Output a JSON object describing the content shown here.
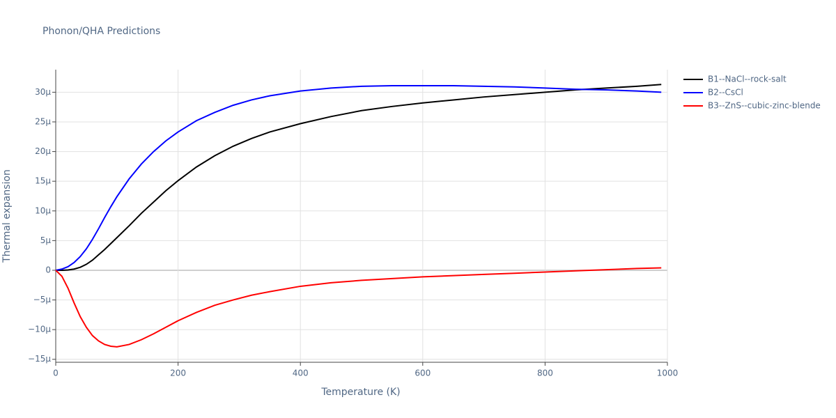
{
  "chart_data": {
    "type": "line",
    "title": "Phonon/QHA Predictions",
    "x_label": "Temperature (K)",
    "y_label": "Thermal expansion",
    "x": [
      0,
      10,
      20,
      30,
      40,
      50,
      60,
      70,
      80,
      90,
      100,
      120,
      140,
      160,
      180,
      200,
      230,
      260,
      290,
      320,
      350,
      400,
      450,
      500,
      550,
      600,
      650,
      700,
      750,
      800,
      850,
      900,
      950,
      990
    ],
    "series": [
      {
        "name": "B1--NaCl--rock-salt",
        "color": "#000000",
        "values": [
          0,
          0,
          0.05,
          0.2,
          0.5,
          1.0,
          1.7,
          2.6,
          3.5,
          4.5,
          5.5,
          7.5,
          9.6,
          11.5,
          13.4,
          15.1,
          17.4,
          19.3,
          20.9,
          22.2,
          23.3,
          24.7,
          25.9,
          26.9,
          27.6,
          28.2,
          28.7,
          29.2,
          29.6,
          30.0,
          30.4,
          30.7,
          31.0,
          31.3
        ]
      },
      {
        "name": "B2--CsCl",
        "color": "#0000ff",
        "values": [
          0,
          0.2,
          0.6,
          1.3,
          2.3,
          3.6,
          5.2,
          7.0,
          8.9,
          10.7,
          12.4,
          15.4,
          17.9,
          20.0,
          21.8,
          23.3,
          25.2,
          26.6,
          27.8,
          28.7,
          29.4,
          30.2,
          30.7,
          31.0,
          31.1,
          31.1,
          31.1,
          31.0,
          30.9,
          30.7,
          30.5,
          30.4,
          30.2,
          30.0
        ]
      },
      {
        "name": "B3--ZnS--cubic-zinc-blende",
        "color": "#ff0000",
        "values": [
          0,
          -1.0,
          -3.0,
          -5.5,
          -7.8,
          -9.6,
          -11.0,
          -11.9,
          -12.5,
          -12.8,
          -12.9,
          -12.5,
          -11.7,
          -10.7,
          -9.6,
          -8.5,
          -7.1,
          -5.9,
          -5.0,
          -4.2,
          -3.6,
          -2.7,
          -2.1,
          -1.7,
          -1.4,
          -1.1,
          -0.9,
          -0.7,
          -0.5,
          -0.3,
          -0.1,
          0.1,
          0.3,
          0.4
        ]
      }
    ],
    "xlim": [
      0,
      1000
    ],
    "xticks": [
      0,
      200,
      400,
      600,
      800,
      1000
    ],
    "ylim": [
      -15.5,
      33.8
    ],
    "yticks": [
      {
        "value": -15,
        "label": "−15μ"
      },
      {
        "value": -10,
        "label": "−10μ"
      },
      {
        "value": -5,
        "label": "−5μ"
      },
      0,
      {
        "value": 5,
        "label": "5μ"
      },
      {
        "value": 10,
        "label": "10μ"
      },
      {
        "value": 15,
        "label": "15μ"
      },
      {
        "value": 20,
        "label": "20μ"
      },
      {
        "value": 25,
        "label": "25μ"
      },
      {
        "value": 30,
        "label": "30μ"
      }
    ],
    "grid": true,
    "legend": "right"
  }
}
